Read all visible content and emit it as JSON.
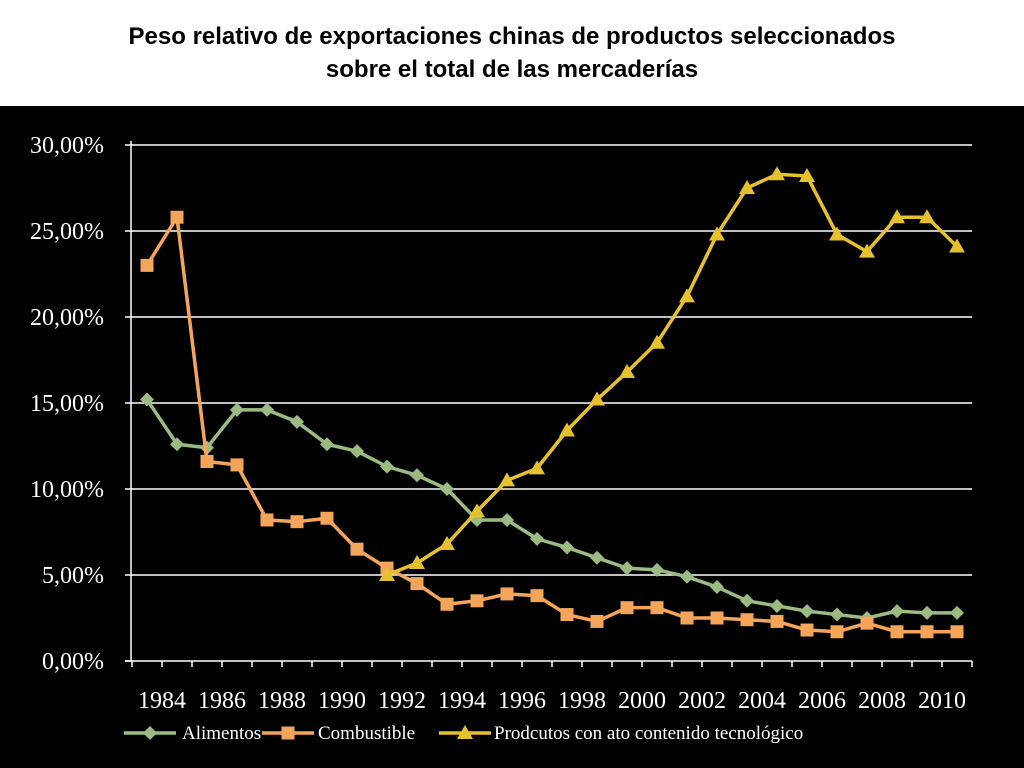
{
  "chart_data": {
    "type": "line",
    "title_lines": [
      "Peso relativo de exportaciones chinas de productos seleccionados",
      "sobre el total de las mercaderías"
    ],
    "x": [
      1984,
      1985,
      1986,
      1987,
      1988,
      1989,
      1990,
      1991,
      1992,
      1993,
      1994,
      1995,
      1996,
      1997,
      1998,
      1999,
      2000,
      2001,
      2002,
      2003,
      2004,
      2005,
      2006,
      2007,
      2008,
      2009,
      2010,
      2011
    ],
    "x_tick_labels": [
      "1984",
      "1986",
      "1988",
      "1990",
      "1992",
      "1994",
      "1996",
      "1998",
      "2000",
      "2002",
      "2004",
      "2006",
      "2008",
      "2010"
    ],
    "y_tick_labels": [
      "0,00%",
      "5,00%",
      "10,00%",
      "15,00%",
      "20,00%",
      "25,00%",
      "30,00%"
    ],
    "y_ticks": [
      0,
      5,
      10,
      15,
      20,
      25,
      30
    ],
    "ylim": [
      0,
      30
    ],
    "grid": true,
    "legend_position": "bottom",
    "series": [
      {
        "name": "Alimentos",
        "color": "#9bbb82",
        "marker": "diamond",
        "values": [
          15.2,
          12.6,
          12.4,
          14.6,
          14.6,
          13.9,
          12.6,
          12.2,
          11.3,
          10.8,
          10.0,
          8.2,
          8.2,
          7.1,
          6.6,
          6.0,
          5.4,
          5.3,
          4.9,
          4.3,
          3.5,
          3.2,
          2.9,
          2.7,
          2.5,
          2.9,
          2.8,
          2.8
        ]
      },
      {
        "name": "Combustible",
        "color": "#f5a55a",
        "marker": "square",
        "values": [
          23.0,
          25.8,
          11.6,
          11.4,
          8.2,
          8.1,
          8.3,
          6.5,
          5.4,
          4.5,
          3.3,
          3.5,
          3.9,
          3.8,
          2.7,
          2.3,
          3.1,
          3.1,
          2.5,
          2.5,
          2.4,
          2.3,
          1.8,
          1.7,
          2.2,
          1.7,
          1.7,
          1.7
        ]
      },
      {
        "name": "Prodcutos con ato contenido tecnológico",
        "color": "#e6c12e",
        "marker": "triangle",
        "values": [
          null,
          null,
          null,
          null,
          null,
          null,
          null,
          null,
          5.0,
          5.7,
          6.8,
          8.7,
          10.5,
          11.2,
          13.4,
          15.2,
          16.8,
          18.5,
          21.2,
          24.8,
          27.5,
          28.3,
          28.2,
          24.8,
          23.8,
          25.8,
          25.8,
          24.1
        ]
      }
    ]
  }
}
